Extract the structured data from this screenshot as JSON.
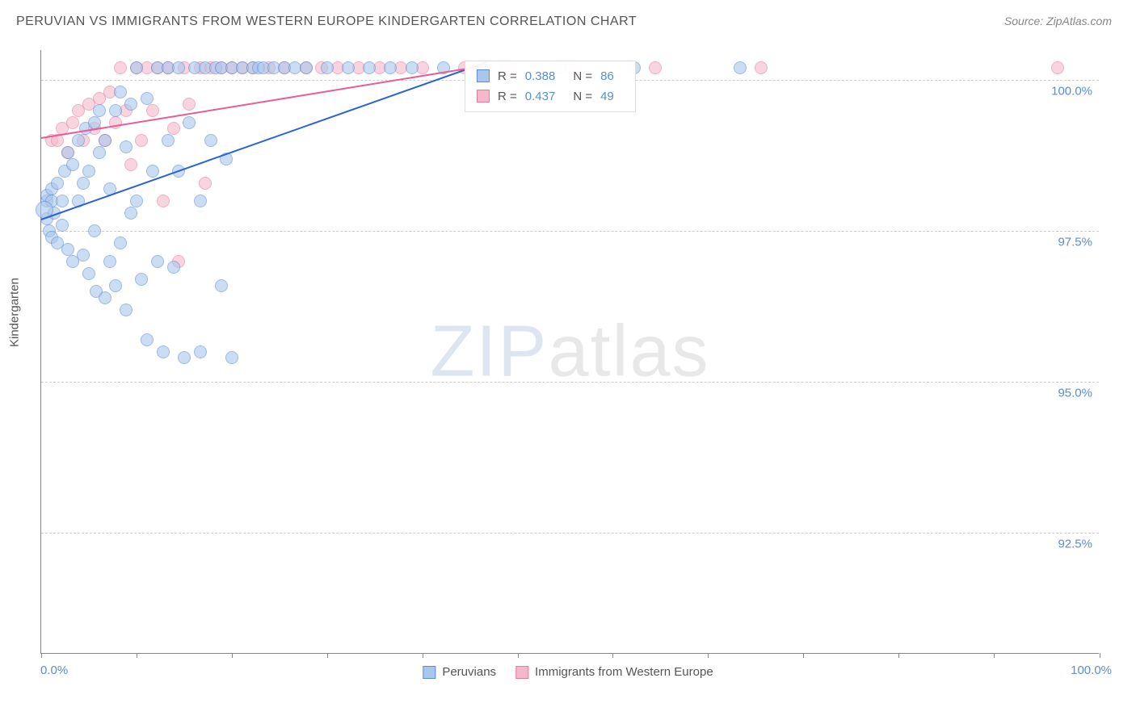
{
  "title": "PERUVIAN VS IMMIGRANTS FROM WESTERN EUROPE KINDERGARTEN CORRELATION CHART",
  "source": "Source: ZipAtlas.com",
  "yaxis_title": "Kindergarten",
  "xaxis": {
    "min_label": "0.0%",
    "max_label": "100.0%"
  },
  "chart": {
    "type": "scatter",
    "background_color": "#ffffff",
    "grid_color": "#cccccc",
    "axis_color": "#888888",
    "text_color": "#555555",
    "tick_label_color": "#5b8dd6",
    "xlim": [
      0,
      100
    ],
    "ylim": [
      90.5,
      100.5
    ],
    "yticks": [
      92.5,
      95.0,
      97.5,
      100.0
    ],
    "ytick_labels": [
      "92.5%",
      "95.0%",
      "97.5%",
      "100.0%"
    ],
    "xtick_positions": [
      0,
      9,
      18,
      27,
      36,
      45,
      54,
      63,
      72,
      81,
      90,
      100
    ],
    "point_radius": 8,
    "point_opacity": 0.6,
    "series": [
      {
        "name": "Peruvians",
        "fill": "#a9c7ec",
        "stroke": "#5b8dd6",
        "trend_color": "#2962d9",
        "trend": {
          "x1": 0,
          "y1": 97.7,
          "x2": 42,
          "y2": 100.3
        },
        "stats": {
          "R": "0.388",
          "N": "86"
        },
        "points": [
          [
            0.5,
            97.7
          ],
          [
            0.5,
            98.0
          ],
          [
            0.5,
            98.1
          ],
          [
            0.8,
            97.5
          ],
          [
            1.0,
            98.2
          ],
          [
            1.0,
            98.0
          ],
          [
            1.2,
            97.8
          ],
          [
            1.0,
            97.4
          ],
          [
            1.5,
            97.3
          ],
          [
            1.5,
            98.3
          ],
          [
            2.0,
            98.0
          ],
          [
            2.0,
            97.6
          ],
          [
            2.2,
            98.5
          ],
          [
            2.5,
            97.2
          ],
          [
            2.5,
            98.8
          ],
          [
            3.0,
            98.6
          ],
          [
            3.0,
            97.0
          ],
          [
            3.5,
            99.0
          ],
          [
            3.5,
            98.0
          ],
          [
            4.0,
            98.3
          ],
          [
            4.0,
            97.1
          ],
          [
            4.2,
            99.2
          ],
          [
            4.5,
            96.8
          ],
          [
            4.5,
            98.5
          ],
          [
            5.0,
            99.3
          ],
          [
            5.0,
            97.5
          ],
          [
            5.2,
            96.5
          ],
          [
            5.5,
            98.8
          ],
          [
            5.5,
            99.5
          ],
          [
            6.0,
            96.4
          ],
          [
            6.0,
            99.0
          ],
          [
            6.5,
            97.0
          ],
          [
            6.5,
            98.2
          ],
          [
            7.0,
            99.5
          ],
          [
            7.0,
            96.6
          ],
          [
            7.5,
            99.8
          ],
          [
            7.5,
            97.3
          ],
          [
            8.0,
            98.9
          ],
          [
            8.0,
            96.2
          ],
          [
            8.5,
            99.6
          ],
          [
            8.5,
            97.8
          ],
          [
            9.0,
            100.2
          ],
          [
            9.0,
            98.0
          ],
          [
            9.5,
            96.7
          ],
          [
            10.0,
            99.7
          ],
          [
            10.0,
            95.7
          ],
          [
            10.5,
            98.5
          ],
          [
            11.0,
            100.2
          ],
          [
            11.0,
            97.0
          ],
          [
            11.5,
            95.5
          ],
          [
            12.0,
            99.0
          ],
          [
            12.0,
            100.2
          ],
          [
            12.5,
            96.9
          ],
          [
            13.0,
            98.5
          ],
          [
            13.0,
            100.2
          ],
          [
            13.5,
            95.4
          ],
          [
            14.0,
            99.3
          ],
          [
            14.5,
            100.2
          ],
          [
            15.0,
            98.0
          ],
          [
            15.0,
            95.5
          ],
          [
            15.5,
            100.2
          ],
          [
            16.0,
            99.0
          ],
          [
            16.5,
            100.2
          ],
          [
            17.0,
            96.6
          ],
          [
            17.0,
            100.2
          ],
          [
            17.5,
            98.7
          ],
          [
            18.0,
            100.2
          ],
          [
            18.0,
            95.4
          ],
          [
            19.0,
            100.2
          ],
          [
            20.0,
            100.2
          ],
          [
            20.5,
            100.2
          ],
          [
            21.0,
            100.2
          ],
          [
            22.0,
            100.2
          ],
          [
            23.0,
            100.2
          ],
          [
            24.0,
            100.2
          ],
          [
            25.0,
            100.2
          ],
          [
            27.0,
            100.2
          ],
          [
            29.0,
            100.2
          ],
          [
            31.0,
            100.2
          ],
          [
            33.0,
            100.2
          ],
          [
            35.0,
            100.2
          ],
          [
            38.0,
            100.2
          ],
          [
            42.0,
            100.2
          ],
          [
            49.0,
            100.2
          ],
          [
            56.0,
            100.2
          ],
          [
            66.0,
            100.2
          ]
        ]
      },
      {
        "name": "Immigrants from Western Europe",
        "fill": "#f4b8ca",
        "stroke": "#e87ba0",
        "trend_color": "#e85d95",
        "trend": {
          "x1": 0,
          "y1": 99.05,
          "x2": 42,
          "y2": 100.25
        },
        "stats": {
          "R": "0.437",
          "N": "49"
        },
        "points": [
          [
            1.0,
            99.0
          ],
          [
            1.5,
            99.0
          ],
          [
            2.0,
            99.2
          ],
          [
            2.5,
            98.8
          ],
          [
            3.0,
            99.3
          ],
          [
            3.5,
            99.5
          ],
          [
            4.0,
            99.0
          ],
          [
            4.5,
            99.6
          ],
          [
            5.0,
            99.2
          ],
          [
            5.5,
            99.7
          ],
          [
            6.0,
            99.0
          ],
          [
            6.5,
            99.8
          ],
          [
            7.0,
            99.3
          ],
          [
            7.5,
            100.2
          ],
          [
            8.0,
            99.5
          ],
          [
            8.5,
            98.6
          ],
          [
            9.0,
            100.2
          ],
          [
            9.5,
            99.0
          ],
          [
            10.0,
            100.2
          ],
          [
            10.5,
            99.5
          ],
          [
            11.0,
            100.2
          ],
          [
            11.5,
            98.0
          ],
          [
            12.0,
            100.2
          ],
          [
            12.5,
            99.2
          ],
          [
            13.0,
            97.0
          ],
          [
            13.5,
            100.2
          ],
          [
            14.0,
            99.6
          ],
          [
            15.0,
            100.2
          ],
          [
            15.5,
            98.3
          ],
          [
            16.0,
            100.2
          ],
          [
            17.0,
            100.2
          ],
          [
            18.0,
            100.2
          ],
          [
            19.0,
            100.2
          ],
          [
            20.0,
            100.2
          ],
          [
            21.5,
            100.2
          ],
          [
            23.0,
            100.2
          ],
          [
            25.0,
            100.2
          ],
          [
            26.5,
            100.2
          ],
          [
            28.0,
            100.2
          ],
          [
            30.0,
            100.2
          ],
          [
            32.0,
            100.2
          ],
          [
            34.0,
            100.2
          ],
          [
            36.0,
            100.2
          ],
          [
            40.0,
            100.2
          ],
          [
            44.0,
            100.2
          ],
          [
            50.0,
            100.2
          ],
          [
            58.0,
            100.2
          ],
          [
            68.0,
            100.2
          ],
          [
            96.0,
            100.2
          ]
        ]
      }
    ]
  },
  "watermark": {
    "part1": "ZIP",
    "part2": "atlas"
  },
  "legend": {
    "series1": "Peruvians",
    "series2": "Immigrants from Western Europe"
  },
  "stats_labels": {
    "R": "R =",
    "N": "N ="
  }
}
